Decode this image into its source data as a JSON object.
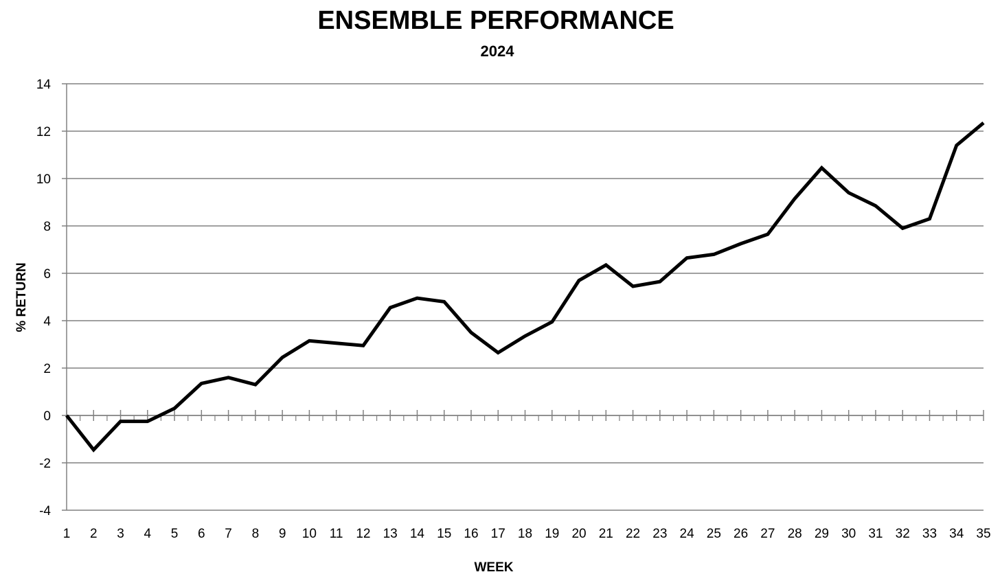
{
  "chart_data": {
    "type": "line",
    "title": "ENSEMBLE PERFORMANCE",
    "subtitle": "2024",
    "xlabel": "WEEK",
    "ylabel": "% RETURN",
    "categories": [
      "1",
      "2",
      "3",
      "4",
      "5",
      "6",
      "7",
      "8",
      "9",
      "10",
      "11",
      "12",
      "13",
      "14",
      "15",
      "16",
      "17",
      "18",
      "19",
      "20",
      "21",
      "22",
      "23",
      "24",
      "25",
      "26",
      "27",
      "28",
      "29",
      "30",
      "31",
      "32",
      "33",
      "34",
      "35"
    ],
    "yticks": [
      "14",
      "12",
      "10",
      "8",
      "6",
      "4",
      "2",
      "0",
      "-2",
      "-4"
    ],
    "ylim": [
      -4,
      14
    ],
    "grid": true,
    "legend": "none",
    "series": [
      {
        "color": "#000000",
        "values": [
          0.0,
          -1.45,
          -0.25,
          -0.25,
          0.3,
          1.35,
          1.6,
          1.3,
          2.45,
          3.15,
          3.05,
          2.95,
          4.55,
          4.95,
          4.8,
          3.5,
          2.65,
          3.35,
          3.95,
          5.7,
          6.35,
          5.45,
          5.65,
          6.65,
          6.8,
          7.25,
          7.65,
          9.15,
          10.45,
          9.4,
          8.85,
          7.9,
          8.3,
          11.4,
          12.35
        ]
      }
    ]
  },
  "colors": {
    "background": "#ffffff",
    "gridline": "#808080",
    "axis": "#808080",
    "line": "#000000"
  }
}
